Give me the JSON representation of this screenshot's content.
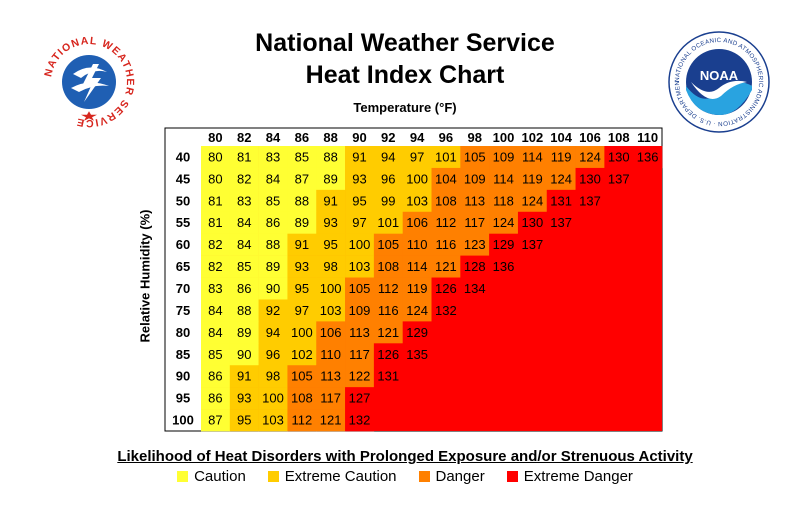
{
  "title_line1": "National Weather Service",
  "title_line2": "Heat Index Chart",
  "logos": {
    "left": {
      "icon": "nws-logo",
      "text": "NATIONAL WEATHER SERVICE"
    },
    "right": {
      "icon": "noaa-logo",
      "text": "NATIONAL OCEANIC AND ATMOSPHERIC ADMINISTRATION · U.S. DEPARTMENT OF COMMERCE",
      "badge": "NOAA"
    }
  },
  "legend": {
    "title": "Likelihood of Heat Disorders with Prolonged Exposure and/or Strenuous Activity",
    "items": [
      {
        "label": "Caution",
        "color": "#ffff33"
      },
      {
        "label": "Extreme Caution",
        "color": "#ffcc00"
      },
      {
        "label": "Danger",
        "color": "#ff8000"
      },
      {
        "label": "Extreme Danger",
        "color": "#ff0000"
      }
    ]
  },
  "chart_data": {
    "type": "heatmap",
    "title": "National Weather Service Heat Index Chart",
    "xlabel": "Temperature (°F)",
    "ylabel": "Relative Humidity (%)",
    "x": [
      80,
      82,
      84,
      86,
      88,
      90,
      92,
      94,
      96,
      98,
      100,
      102,
      104,
      106,
      108,
      110
    ],
    "y": [
      40,
      45,
      50,
      55,
      60,
      65,
      70,
      75,
      80,
      85,
      90,
      95,
      100
    ],
    "values": [
      [
        80,
        81,
        83,
        85,
        88,
        91,
        94,
        97,
        101,
        105,
        109,
        114,
        119,
        124,
        130,
        136
      ],
      [
        80,
        82,
        84,
        87,
        89,
        93,
        96,
        100,
        104,
        109,
        114,
        119,
        124,
        130,
        137,
        null
      ],
      [
        81,
        83,
        85,
        88,
        91,
        95,
        99,
        103,
        108,
        113,
        118,
        124,
        131,
        137,
        null,
        null
      ],
      [
        81,
        84,
        86,
        89,
        93,
        97,
        101,
        106,
        112,
        117,
        124,
        130,
        137,
        null,
        null,
        null
      ],
      [
        82,
        84,
        88,
        91,
        95,
        100,
        105,
        110,
        116,
        123,
        129,
        137,
        null,
        null,
        null,
        null
      ],
      [
        82,
        85,
        89,
        93,
        98,
        103,
        108,
        114,
        121,
        128,
        136,
        null,
        null,
        null,
        null,
        null
      ],
      [
        83,
        86,
        90,
        95,
        100,
        105,
        112,
        119,
        126,
        134,
        null,
        null,
        null,
        null,
        null,
        null
      ],
      [
        84,
        88,
        92,
        97,
        103,
        109,
        116,
        124,
        132,
        null,
        null,
        null,
        null,
        null,
        null,
        null
      ],
      [
        84,
        89,
        94,
        100,
        106,
        113,
        121,
        129,
        null,
        null,
        null,
        null,
        null,
        null,
        null,
        null
      ],
      [
        85,
        90,
        96,
        102,
        110,
        117,
        126,
        135,
        null,
        null,
        null,
        null,
        null,
        null,
        null,
        null
      ],
      [
        86,
        91,
        98,
        105,
        113,
        122,
        131,
        null,
        null,
        null,
        null,
        null,
        null,
        null,
        null,
        null
      ],
      [
        86,
        93,
        100,
        108,
        117,
        127,
        null,
        null,
        null,
        null,
        null,
        null,
        null,
        null,
        null,
        null
      ],
      [
        87,
        95,
        103,
        112,
        121,
        132,
        null,
        null,
        null,
        null,
        null,
        null,
        null,
        null,
        null,
        null
      ]
    ],
    "categories": [
      {
        "label": "Caution",
        "min": 80,
        "max": 90,
        "color": "#ffff33"
      },
      {
        "label": "Extreme Caution",
        "min": 91,
        "max": 103,
        "color": "#ffcc00"
      },
      {
        "label": "Danger",
        "min": 104,
        "max": 124,
        "color": "#ff8000"
      },
      {
        "label": "Extreme Danger",
        "min": 125,
        "max": 999,
        "color": "#ff0000"
      }
    ],
    "blank_cell_color": "#ff0000"
  }
}
